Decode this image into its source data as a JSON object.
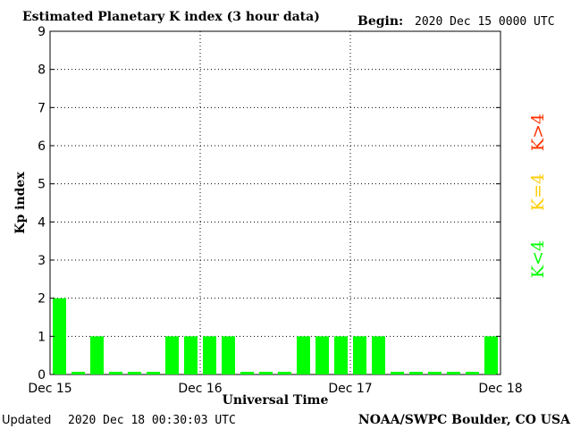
{
  "header": {
    "title": "Estimated Planetary K index (3 hour data)",
    "begin_label": "Begin:",
    "begin_value": "2020 Dec 15 0000 UTC"
  },
  "footer": {
    "updated_label": "Updated",
    "updated_value": "2020 Dec 18 00:30:03 UTC",
    "source": "NOAA/SWPC Boulder, CO USA"
  },
  "legend": [
    {
      "label": "K<4",
      "color": "#00ff00"
    },
    {
      "label": "K=4",
      "color": "#ffcc00"
    },
    {
      "label": "K>4",
      "color": "#ff3300"
    }
  ],
  "chart_data": {
    "type": "bar",
    "title": "Estimated Planetary K index (3 hour data)",
    "xlabel": "Universal Time",
    "ylabel": "Kp index",
    "ylim": [
      0,
      9
    ],
    "yticks": [
      "0",
      "1",
      "2",
      "3",
      "4",
      "5",
      "6",
      "7",
      "8",
      "9"
    ],
    "xticks": [
      "Dec 15",
      "Dec 16",
      "Dec 17",
      "Dec 18"
    ],
    "interval_hours": 3,
    "values": [
      2,
      0,
      1,
      0,
      0,
      0,
      1,
      1,
      1,
      1,
      0,
      0,
      0,
      1,
      1,
      1,
      1,
      1,
      0,
      0,
      0,
      0,
      0,
      1
    ],
    "grid": "dotted",
    "bar_color": "#00ff00"
  }
}
